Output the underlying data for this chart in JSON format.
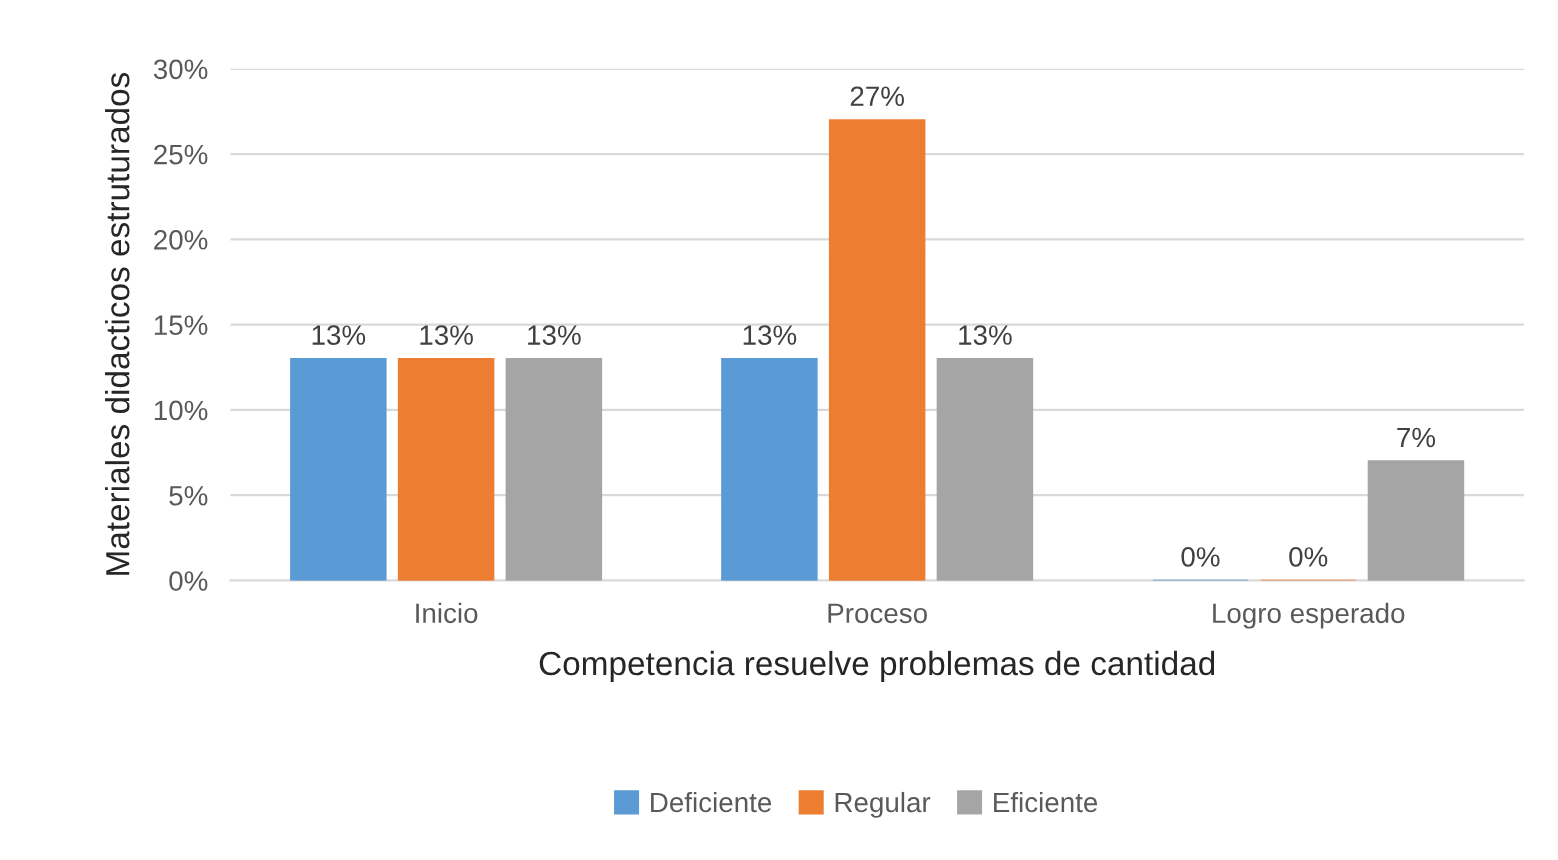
{
  "chart_data": {
    "type": "bar",
    "xlabel": "Competencia resuelve problemas de cantidad",
    "ylabel": "Materiales didacticos estruturados",
    "categories": [
      "Inicio",
      "Proceso",
      "Logro esperado"
    ],
    "series": [
      {
        "name": "Deficiente",
        "color": "#5b9bd5",
        "values": [
          13,
          13,
          0
        ],
        "value_labels": [
          "13%",
          "13%",
          "0%"
        ]
      },
      {
        "name": "Regular",
        "color": "#ed7d31",
        "values": [
          13,
          27,
          0
        ],
        "value_labels": [
          "13%",
          "27%",
          "0%"
        ]
      },
      {
        "name": "Eficiente",
        "color": "#a5a5a5",
        "values": [
          13,
          13,
          7
        ],
        "value_labels": [
          "13%",
          "13%",
          "7%"
        ]
      }
    ],
    "ylim": [
      0,
      30
    ],
    "yticks": [
      {
        "value": 0,
        "label": "0%"
      },
      {
        "value": 5,
        "label": "5%"
      },
      {
        "value": 10,
        "label": "10%"
      },
      {
        "value": 15,
        "label": "15%"
      },
      {
        "value": 20,
        "label": "20%"
      },
      {
        "value": 25,
        "label": "25%"
      },
      {
        "value": 30,
        "label": "30%"
      }
    ],
    "grid": "y",
    "legend": "bottom"
  }
}
